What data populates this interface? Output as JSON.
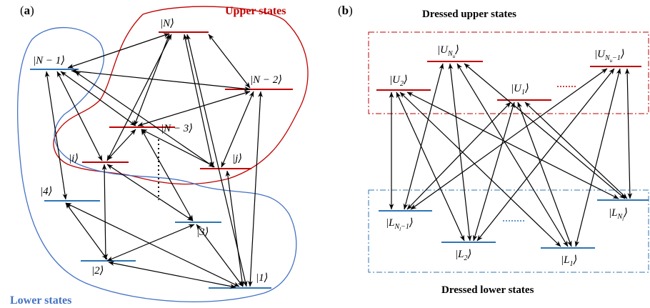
{
  "colors": {
    "upper": "#c00000",
    "lower": "#2e75b6",
    "arrow": "#000000",
    "box_upper": "#c00000",
    "box_lower": "#2e75b6"
  },
  "panel_a": {
    "label_open": "(",
    "label_letter": "a",
    "label_close": ")",
    "upper_group_title": "Upper states",
    "lower_group_title": "Lower states",
    "levels": {
      "N": "|N⟩",
      "N1": "|N − 1⟩",
      "N2": "|N − 2⟩",
      "N3": "|N − 3⟩",
      "i": "|i⟩",
      "j": "|j⟩",
      "four": "|4⟩",
      "three": "|3⟩",
      "two": "|2⟩",
      "one": "|1⟩"
    }
  },
  "panel_b": {
    "label_open": "(",
    "label_letter": "b",
    "label_close": ")",
    "upper_title": "Dressed upper states",
    "lower_title": "Dressed lower states",
    "levels": {
      "U2_main": "U",
      "U2_sub": "2",
      "UNu_main": "U",
      "UNu_sub": "N",
      "UNu_subsub": "u",
      "U1_main": "U",
      "U1_sub": "1",
      "UNu1_main": "U",
      "UNu1_sub": "N",
      "UNu1_subsub": "u",
      "UNu1_tail": "−1",
      "LNl1_main": "L",
      "LNl1_sub": "N",
      "LNl1_subsub": "l",
      "LNl1_tail": "−1",
      "L2_main": "L",
      "L2_sub": "2",
      "L1_main": "L",
      "L1_sub": "1",
      "LNl_main": "L",
      "LNl_sub": "N",
      "LNl_subsub": "l"
    }
  }
}
